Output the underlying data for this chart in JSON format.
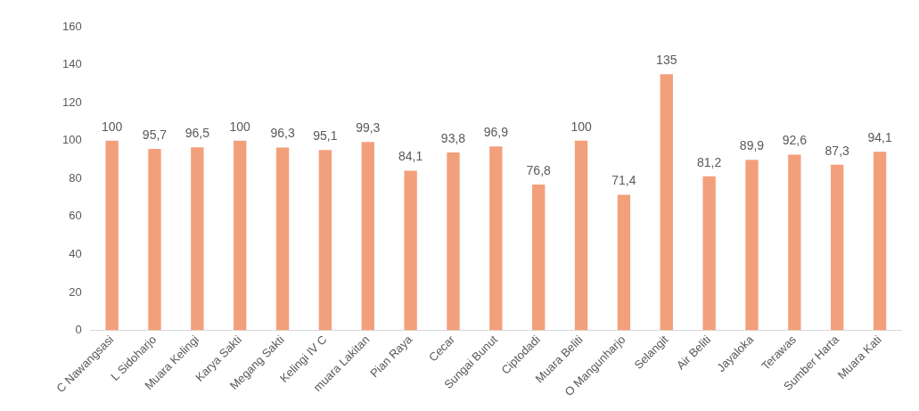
{
  "chart_data": {
    "type": "bar",
    "categories": [
      "C Nawangsasi",
      "L Sidoharjo",
      "Muara Kelingi",
      "Karya Sakti",
      "Megang Sakti",
      "Kelingi IV C",
      "muara Lakitan",
      "Pian Raya",
      "Cecar",
      "Sungai Bunut",
      "Ciptodadi",
      "Muara Beliti",
      "O Mangunharjo",
      "Selangit",
      "Air Beliti",
      "Jayaloka",
      "Terawas",
      "Sumber Harta",
      "Muara Kati"
    ],
    "values": [
      100,
      95.7,
      96.5,
      100,
      96.3,
      95.1,
      99.3,
      84.1,
      93.8,
      96.9,
      76.8,
      100,
      71.4,
      135,
      81.2,
      89.9,
      92.6,
      87.3,
      94.1
    ],
    "value_labels": [
      "100",
      "95,7",
      "96,5",
      "100",
      "96,3",
      "95,1",
      "99,3",
      "84,1",
      "93,8",
      "96,9",
      "76,8",
      "100",
      "71,4",
      "135",
      "81,2",
      "89,9",
      "92,6",
      "87,3",
      "94,1"
    ],
    "color": "#f2a07b",
    "ylim": [
      0,
      160
    ],
    "yticks": [
      0,
      20,
      40,
      60,
      80,
      100,
      120,
      140,
      160
    ],
    "grid": false
  }
}
